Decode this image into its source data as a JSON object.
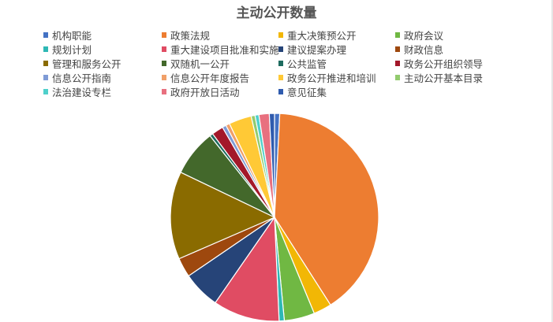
{
  "chart_data": {
    "type": "pie",
    "title": "主动公开数量",
    "legend_position": "top",
    "start": "top, clockwise",
    "unit": "percent (estimated)",
    "slices": [
      {
        "name": "机构职能",
        "value": 0.8,
        "color": "#4472C4"
      },
      {
        "name": "政策法规",
        "value": 40.0,
        "color": "#ED7D31"
      },
      {
        "name": "重大决策预公开",
        "value": 2.8,
        "color": "#F2B705"
      },
      {
        "name": "政府会议",
        "value": 4.7,
        "color": "#70B843"
      },
      {
        "name": "规划计划",
        "value": 0.8,
        "color": "#2EB8B5"
      },
      {
        "name": "重大建设项目批准和实施",
        "value": 10.3,
        "color": "#E04C63"
      },
      {
        "name": "建议提案办理",
        "value": 5.8,
        "color": "#264478"
      },
      {
        "name": "财政信息",
        "value": 3.0,
        "color": "#9E480E"
      },
      {
        "name": "管理和服务公开",
        "value": 13.6,
        "color": "#8A6B00"
      },
      {
        "name": "双随机一公开",
        "value": 7.2,
        "color": "#43682B"
      },
      {
        "name": "公共监管",
        "value": 0.5,
        "color": "#1E6B5F"
      },
      {
        "name": "政务公开组织领导",
        "value": 1.8,
        "color": "#A3182A"
      },
      {
        "name": "信息公开指南",
        "value": 0.6,
        "color": "#7F9BD6"
      },
      {
        "name": "信息公开年度报告",
        "value": 0.6,
        "color": "#F1A068"
      },
      {
        "name": "政务公开推进和培训",
        "value": 3.5,
        "color": "#FFC936"
      },
      {
        "name": "主动公开基本目录",
        "value": 0.6,
        "color": "#92CB6E"
      },
      {
        "name": "法治建设专栏",
        "value": 0.6,
        "color": "#4FD0CB"
      },
      {
        "name": "政府开放日活动",
        "value": 1.6,
        "color": "#E8707F"
      },
      {
        "name": "意见征集",
        "value": 0.8,
        "color": "#2F5BAE"
      }
    ]
  }
}
